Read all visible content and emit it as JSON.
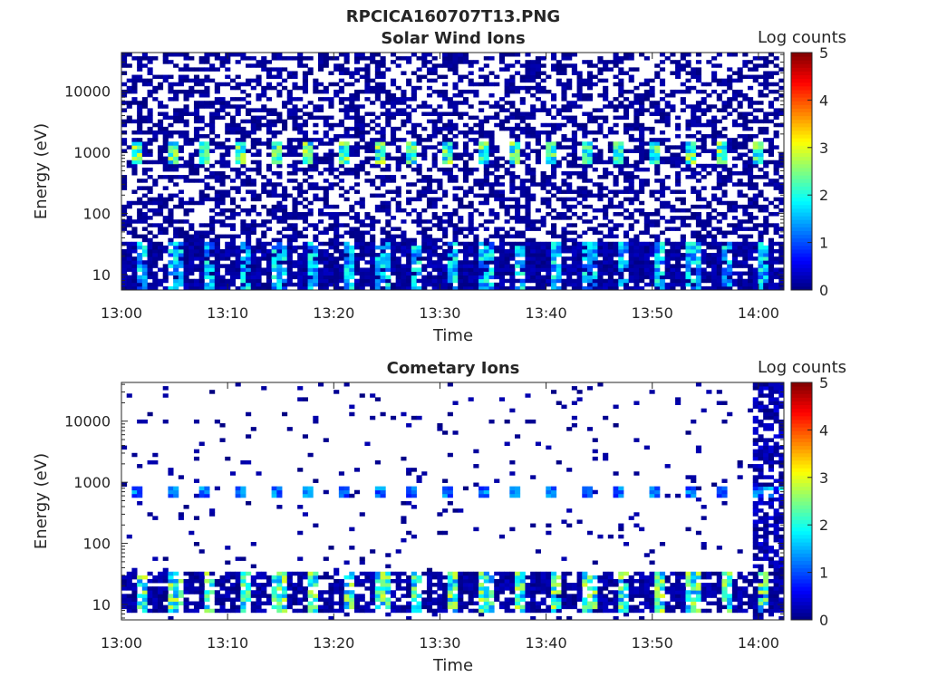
{
  "figure_title": "RPCICA160707T13.PNG",
  "chart_data": [
    {
      "type": "heatmap",
      "title": "Solar Wind Ions",
      "xlabel": "Time",
      "ylabel": "Energy (eV)",
      "colorbar_label": "Log counts",
      "x_ticks": [
        "13:00",
        "13:10",
        "13:20",
        "13:30",
        "13:40",
        "13:50",
        "14:00"
      ],
      "x_range_minutes": [
        0,
        62.4
      ],
      "y_scale": "log",
      "y_ticks": [
        10,
        100,
        1000,
        10000
      ],
      "y_range": [
        5.6,
        43000
      ],
      "colorbar_ticks": [
        0,
        1,
        2,
        3,
        4,
        5
      ],
      "colorbar_range": [
        0,
        5
      ],
      "colormap": "jet",
      "pattern": {
        "sweep_period_minutes": 3.25,
        "beam_energy_eV": [
          630,
          1600
        ],
        "beam_peak_log_counts": 3.0,
        "low_energy_band_eV": [
          5.6,
          35
        ],
        "low_energy_peak_log_counts": 2.2,
        "background": "dense"
      }
    },
    {
      "type": "heatmap",
      "title": "Cometary Ions",
      "xlabel": "Time",
      "ylabel": "Energy (eV)",
      "colorbar_label": "Log counts",
      "x_ticks": [
        "13:00",
        "13:10",
        "13:20",
        "13:30",
        "13:40",
        "13:50",
        "14:00"
      ],
      "x_range_minutes": [
        0,
        62.4
      ],
      "y_scale": "log",
      "y_ticks": [
        10,
        100,
        1000,
        10000
      ],
      "y_range": [
        5.6,
        43000
      ],
      "colorbar_ticks": [
        0,
        1,
        2,
        3,
        4,
        5
      ],
      "colorbar_range": [
        0,
        5
      ],
      "colormap": "jet",
      "pattern": {
        "sweep_period_minutes": 3.25,
        "beam_energy_eV": [
          550,
          900
        ],
        "beam_peak_log_counts": 1.6,
        "low_energy_band_eV": [
          7,
          35
        ],
        "low_energy_peak_log_counts": 3.0,
        "background": "sparse",
        "burst_start_minutes": 59.5
      }
    }
  ]
}
